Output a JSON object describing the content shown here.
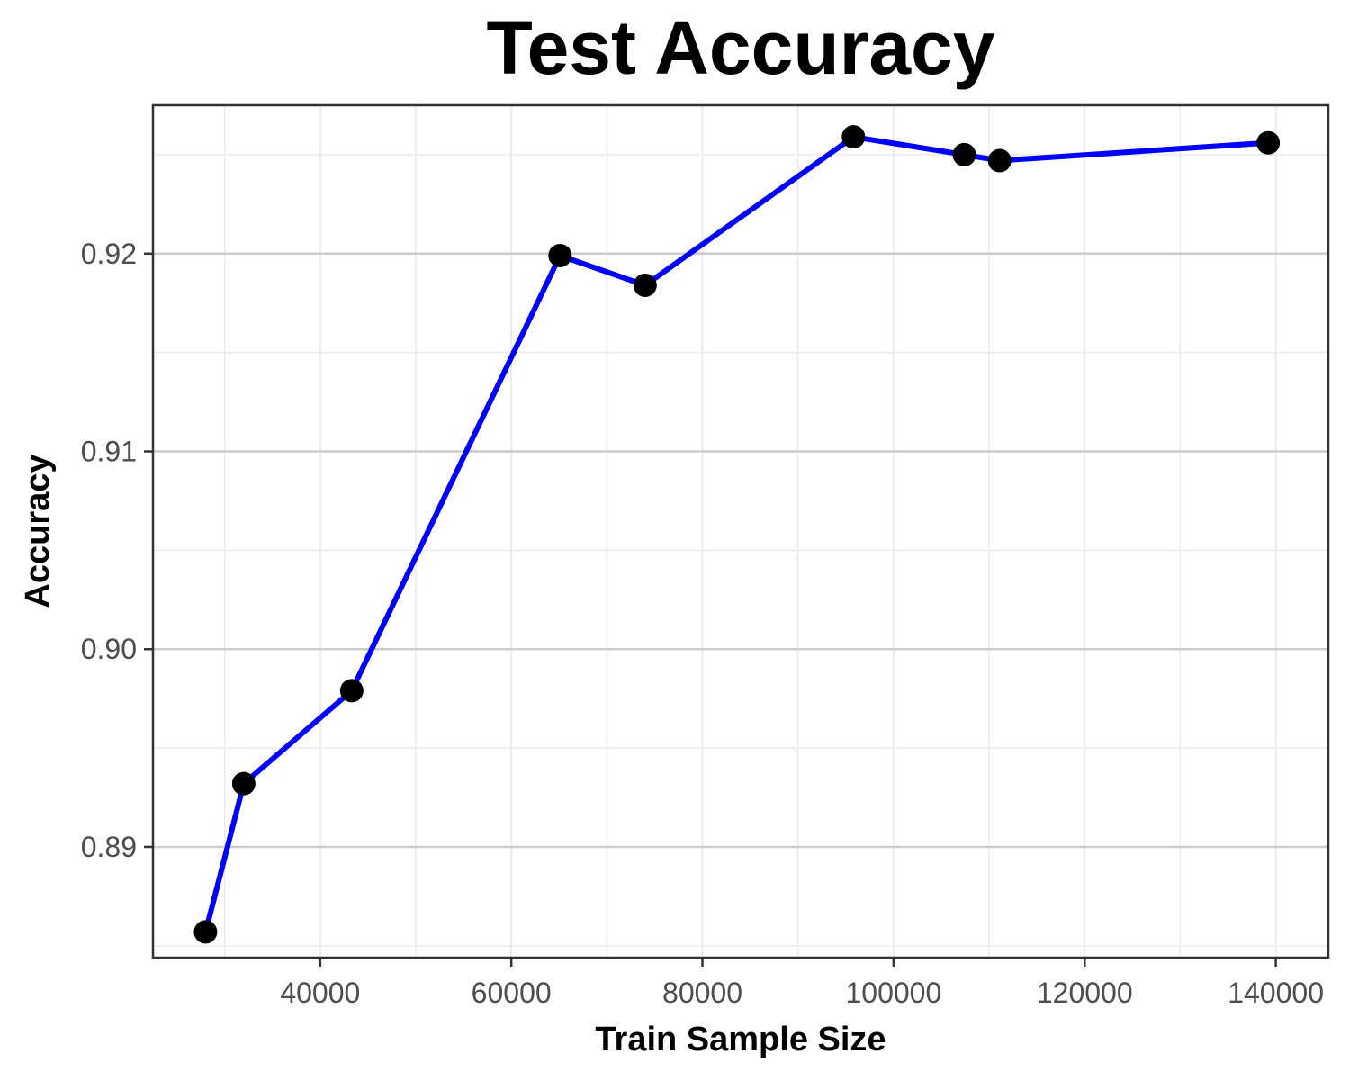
{
  "chart_data": {
    "type": "line",
    "title": "Test Accuracy",
    "xlabel": "Train Sample Size",
    "ylabel": "Accuracy",
    "x_ticks": [
      40000,
      60000,
      80000,
      100000,
      120000,
      140000
    ],
    "x_tick_labels": [
      "40000",
      "60000",
      "80000",
      "100000",
      "120000",
      "140000"
    ],
    "y_ticks": [
      0.89,
      0.9,
      0.91,
      0.92
    ],
    "y_tick_labels": [
      "0.89",
      "0.90",
      "0.91",
      "0.92"
    ],
    "xlim": [
      22500,
      145500
    ],
    "ylim": [
      0.8844,
      0.9275
    ],
    "grid": true,
    "legend": "none",
    "series": [
      {
        "line_color": "#0000ff",
        "marker_color": "#000000",
        "points": [
          {
            "x": 28000,
            "y": 0.8857
          },
          {
            "x": 32000,
            "y": 0.8932
          },
          {
            "x": 43300,
            "y": 0.8979
          },
          {
            "x": 65100,
            "y": 0.9199
          },
          {
            "x": 74000,
            "y": 0.9184
          },
          {
            "x": 95800,
            "y": 0.9259
          },
          {
            "x": 107400,
            "y": 0.925
          },
          {
            "x": 111100,
            "y": 0.9247
          },
          {
            "x": 139200,
            "y": 0.9256
          }
        ]
      }
    ],
    "colors": {
      "background": "#ffffff",
      "panel_border": "#333333",
      "grid_major": "#cccccc",
      "grid_minor": "#ebebeb",
      "tick_text": "#4d4d4d",
      "title_text": "#000000"
    }
  }
}
